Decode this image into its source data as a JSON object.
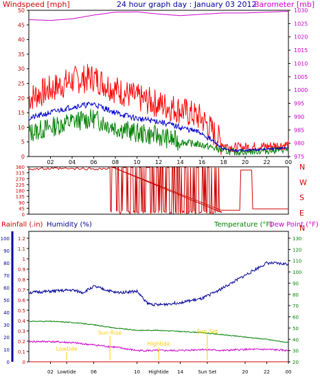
{
  "chart_data": [
    {
      "type": "line",
      "name_panel": "wind-barometer",
      "title": "24 hour graph day : January 03 2012",
      "left_axis_label": "Windspeed [mph]",
      "right_axis_label": "Barometer [mb]",
      "left_ylim": [
        0,
        50
      ],
      "left_ticks": [
        0,
        5,
        10,
        15,
        20,
        25,
        30,
        35,
        40,
        45,
        50
      ],
      "right_ylim": [
        975,
        1030
      ],
      "right_ticks": [
        975,
        980,
        985,
        990,
        995,
        1000,
        1005,
        1010,
        1015,
        1020,
        1025,
        1030
      ],
      "x_ticks": [
        "02",
        "04",
        "06",
        "08",
        "10",
        "12",
        "14",
        "16",
        "18",
        "20",
        "22",
        "00"
      ],
      "x_tick_hours": [
        2,
        4,
        6,
        8,
        10,
        12,
        14,
        16,
        18,
        20,
        22,
        24
      ],
      "xlim": [
        0,
        24
      ],
      "colors": {
        "gust": "#ff0000",
        "wind": "#008000",
        "avg": "#0000cc",
        "barometer": "#cc00cc",
        "left_axis": "#cc0000",
        "right_axis": "#cc00cc"
      },
      "series": {
        "barometer": {
          "hours": [
            0,
            2,
            4,
            6,
            8,
            10,
            12,
            14,
            16,
            18,
            20,
            22,
            24
          ],
          "values": [
            1026.5,
            1026.2,
            1026.8,
            1028.2,
            1029.3,
            1029.4,
            1028.6,
            1028.0,
            1028.5,
            1029.0,
            1029.0,
            1029.3,
            1029.6
          ]
        },
        "gust": {
          "hours": [
            0,
            2,
            4,
            6,
            8,
            10,
            12,
            14,
            16,
            18,
            19,
            22,
            24
          ],
          "values": [
            20,
            23,
            26,
            27,
            23,
            20,
            18,
            16,
            13,
            4,
            3,
            3.5,
            4
          ]
        },
        "avg": {
          "hours": [
            0,
            2,
            4,
            6,
            8,
            10,
            12,
            14,
            16,
            18,
            19,
            22,
            24
          ],
          "values": [
            13,
            15,
            17,
            18,
            15,
            13,
            12,
            10,
            8,
            2.5,
            2,
            2.5,
            3
          ]
        },
        "wind": {
          "hours": [
            0,
            2,
            4,
            6,
            8,
            10,
            12,
            14,
            16,
            18,
            19,
            22,
            24
          ],
          "values": [
            8,
            10,
            12,
            13,
            10,
            8,
            7,
            5,
            4,
            2,
            1.5,
            2,
            2.5
          ]
        }
      }
    },
    {
      "type": "line",
      "name_panel": "wind-direction",
      "left_ylim": [
        0,
        360
      ],
      "left_ticks": [
        0,
        45,
        90,
        135,
        180,
        225,
        270,
        315,
        360
      ],
      "right_labels": [
        "N",
        "W",
        "S",
        "E",
        "N"
      ],
      "color": "#cc0000",
      "series": {
        "direction": {
          "hours": [
            0,
            2,
            4,
            6,
            7.8,
            17.8,
            18,
            19.5,
            19.6,
            20.6,
            20.7,
            24
          ],
          "values": [
            345,
            350,
            355,
            355,
            355,
            30,
            30,
            30,
            335,
            335,
            40,
            40
          ]
        }
      }
    },
    {
      "type": "line",
      "name_panel": "rain-humidity-temperature",
      "labels": {
        "rain": "Rainfall (.in)",
        "humidity": "Humidity (%)",
        "temperature": "Temperature (°F)",
        "dewpoint": "Dew Point (°F)"
      },
      "rain_ticks": [
        0,
        0.1,
        0.2,
        0.3,
        0.4,
        0.5,
        0.6,
        0.7,
        0.8,
        0.9,
        1,
        1.1,
        1.2
      ],
      "rain_ylim": [
        0,
        1.2
      ],
      "humidity_ticks": [
        0,
        10,
        20,
        30,
        40,
        50,
        60,
        70,
        80,
        90,
        100
      ],
      "humidity_ylim": [
        0,
        100
      ],
      "temp_ticks": [
        20,
        30,
        40,
        50,
        60,
        70,
        80,
        90,
        100,
        110,
        120,
        130
      ],
      "temp_ylim": [
        20,
        130
      ],
      "x_ticks": [
        "02",
        "Lowtide",
        "06",
        "10",
        "Hightide",
        "14",
        "Sun Set",
        "20",
        "22",
        "00"
      ],
      "x_tick_hours": [
        2,
        3.5,
        6,
        10,
        12,
        14,
        16.5,
        20,
        22,
        24
      ],
      "colors": {
        "humidity": "#000099",
        "temperature": "#008000",
        "dewpoint": "#cc00cc",
        "rain": "#cc0000",
        "markers": "#ffcc00"
      },
      "series": {
        "humidity": {
          "hours": [
            0,
            2,
            4,
            5,
            6,
            8,
            10,
            11,
            12,
            14,
            16,
            18,
            20,
            22,
            24
          ],
          "values": [
            56,
            57,
            58,
            56,
            61,
            56,
            57,
            47,
            46,
            48,
            51,
            60,
            70,
            80,
            79
          ]
        },
        "temperature": {
          "hours": [
            0,
            2,
            4,
            6,
            8,
            10,
            12,
            14,
            16,
            18,
            20,
            22,
            24
          ],
          "values": [
            56,
            56,
            55,
            53,
            50,
            48,
            48,
            47,
            46,
            44,
            42,
            40,
            37
          ]
        },
        "dewpoint": {
          "hours": [
            0,
            2,
            4,
            6,
            8,
            10,
            12,
            14,
            16,
            18,
            20,
            22,
            24
          ],
          "values": [
            38,
            38,
            37,
            35,
            33,
            30,
            30,
            30,
            31,
            30,
            31,
            31,
            30
          ]
        },
        "rain": {
          "hours": [
            0,
            24
          ],
          "values": [
            0,
            0
          ]
        }
      },
      "annotations": [
        {
          "text": "Lowtide",
          "hour": 3.5,
          "value": 9
        },
        {
          "text": "Sun Rise",
          "hour": 7.5,
          "value": 22
        },
        {
          "text": "Hightide",
          "hour": 12,
          "value": 13
        },
        {
          "text": "Sun Set",
          "hour": 16.5,
          "value": 23
        }
      ]
    }
  ]
}
